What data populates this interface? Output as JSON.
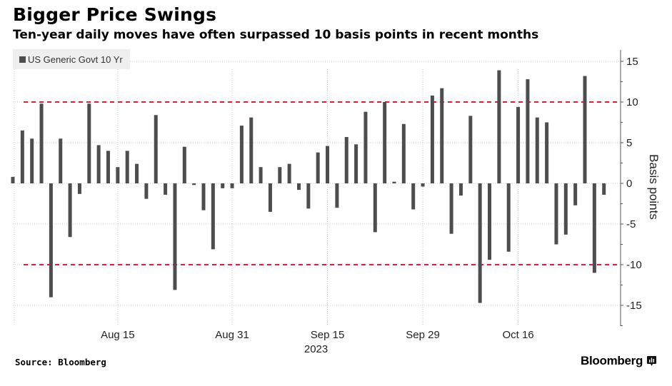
{
  "header": {
    "title": "Bigger Price Swings",
    "subtitle": "Ten-year daily moves have often surpassed 10 basis points in recent months"
  },
  "footer": {
    "source": "Source: Bloomberg",
    "brand": "Bloomberg"
  },
  "colors": {
    "bar": "#4d4d4d",
    "threshold_line": "#e8193c",
    "grid": "#cccccc",
    "legend_bg": "#efefef"
  },
  "chart_data": {
    "type": "bar",
    "title": "Bigger Price Swings",
    "subtitle": "Ten-year daily moves have often surpassed 10 basis points in recent months",
    "xlabel": "",
    "ylabel": "Basis points",
    "ylim": [
      -17.5,
      16.5
    ],
    "yticks": [
      15,
      10,
      5,
      0,
      -5,
      -10,
      -15
    ],
    "ytick_labels": [
      "15",
      "10",
      "5",
      "0",
      "-5",
      "-10",
      "-15"
    ],
    "y_axis_side": "right",
    "grid": true,
    "legend": {
      "position": "top-left",
      "entries": [
        "US Generic Govt 10 Yr"
      ]
    },
    "threshold_lines": [
      10,
      -10
    ],
    "x_ticks": [
      {
        "label": "Aug 15",
        "bar_index": 11
      },
      {
        "label": "Aug 31",
        "bar_index": 23
      },
      {
        "label": "Sep 15",
        "bar_index": 33,
        "sublabel": "2023"
      },
      {
        "label": "Sep 29",
        "bar_index": 43
      },
      {
        "label": "Oct 16",
        "bar_index": 53
      }
    ],
    "x_year_label": "2023",
    "series": [
      {
        "name": "US Generic Govt 10 Yr",
        "values": [
          0.8,
          6.5,
          5.5,
          9.8,
          -14.0,
          5.5,
          -6.6,
          -1.3,
          9.8,
          4.7,
          4.0,
          2.0,
          4.0,
          2.4,
          -1.9,
          8.4,
          -1.4,
          -13.1,
          4.5,
          -0.2,
          -3.3,
          -8.1,
          -0.6,
          -0.6,
          7.1,
          8.1,
          2.0,
          -3.5,
          2.0,
          2.4,
          -0.8,
          -3.1,
          3.8,
          4.6,
          -3.0,
          5.7,
          4.8,
          8.8,
          -6.0,
          10.0,
          0.2,
          7.3,
          -3.2,
          -0.4,
          10.8,
          11.7,
          -6.2,
          -1.5,
          8.3,
          -14.7,
          -9.4,
          13.9,
          -8.4,
          9.4,
          12.8,
          8.1,
          7.5,
          -7.5,
          -6.3,
          -2.7,
          13.2,
          -11.0,
          -1.4
        ]
      }
    ]
  }
}
